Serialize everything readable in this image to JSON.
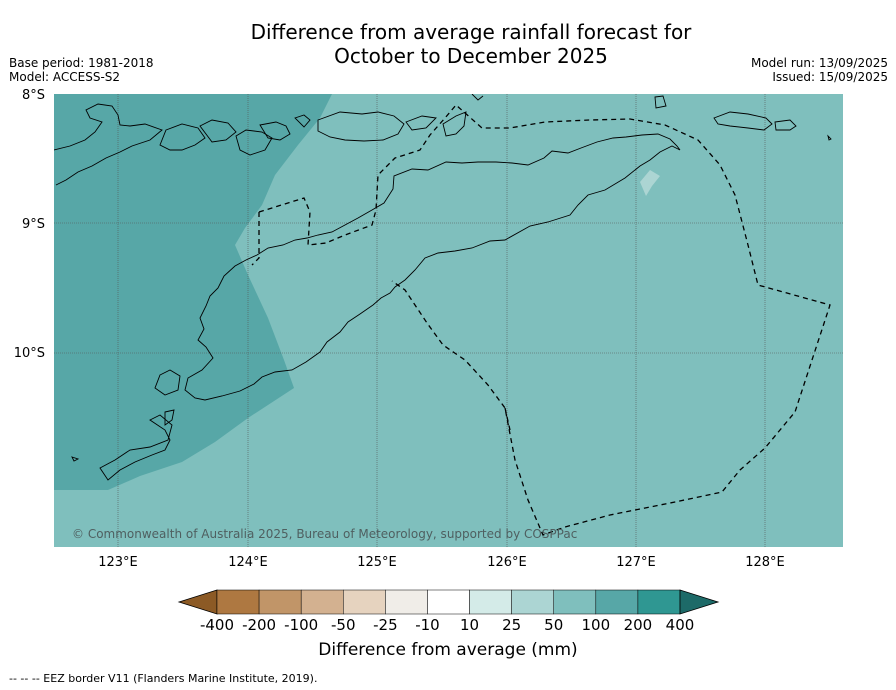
{
  "title": {
    "line1": "Difference from average rainfall forecast for",
    "line2": "October to December 2025"
  },
  "meta": {
    "base_period": "Base period: 1981-2018",
    "model": "Model: ACCESS-S2",
    "model_run": "Model run: 13/09/2025",
    "issued": "Issued: 15/09/2025"
  },
  "map": {
    "lat_labels": [
      "8°S",
      "9°S",
      "10°S"
    ],
    "lon_labels": [
      "123°E",
      "124°E",
      "125°E",
      "126°E",
      "127°E",
      "128°E"
    ],
    "copyright": "© Commonwealth of Australia 2025, Bureau of Meteorology, supported by COSPPac",
    "colors": {
      "class_50_100": "#7fbfbd",
      "class_100_200": "#57a7a7",
      "class_25_50": "#acd5d3"
    }
  },
  "colorbar": {
    "labels": [
      "-400",
      "-200",
      "-100",
      "-50",
      "-25",
      "-10",
      "10",
      "25",
      "50",
      "100",
      "200",
      "400"
    ],
    "colors": [
      "#8c5a25",
      "#ae7841",
      "#c19568",
      "#d3b190",
      "#e6d3bf",
      "#f0ede8",
      "#ffffff",
      "#d4ebe8",
      "#acd5d3",
      "#7fbfbd",
      "#57a7a7",
      "#2f9792",
      "#1d6a68"
    ],
    "label": "Difference from average (mm)"
  },
  "footnote": "--  --  -- EEZ border V11 (Flanders Marine Institute, 2019)."
}
